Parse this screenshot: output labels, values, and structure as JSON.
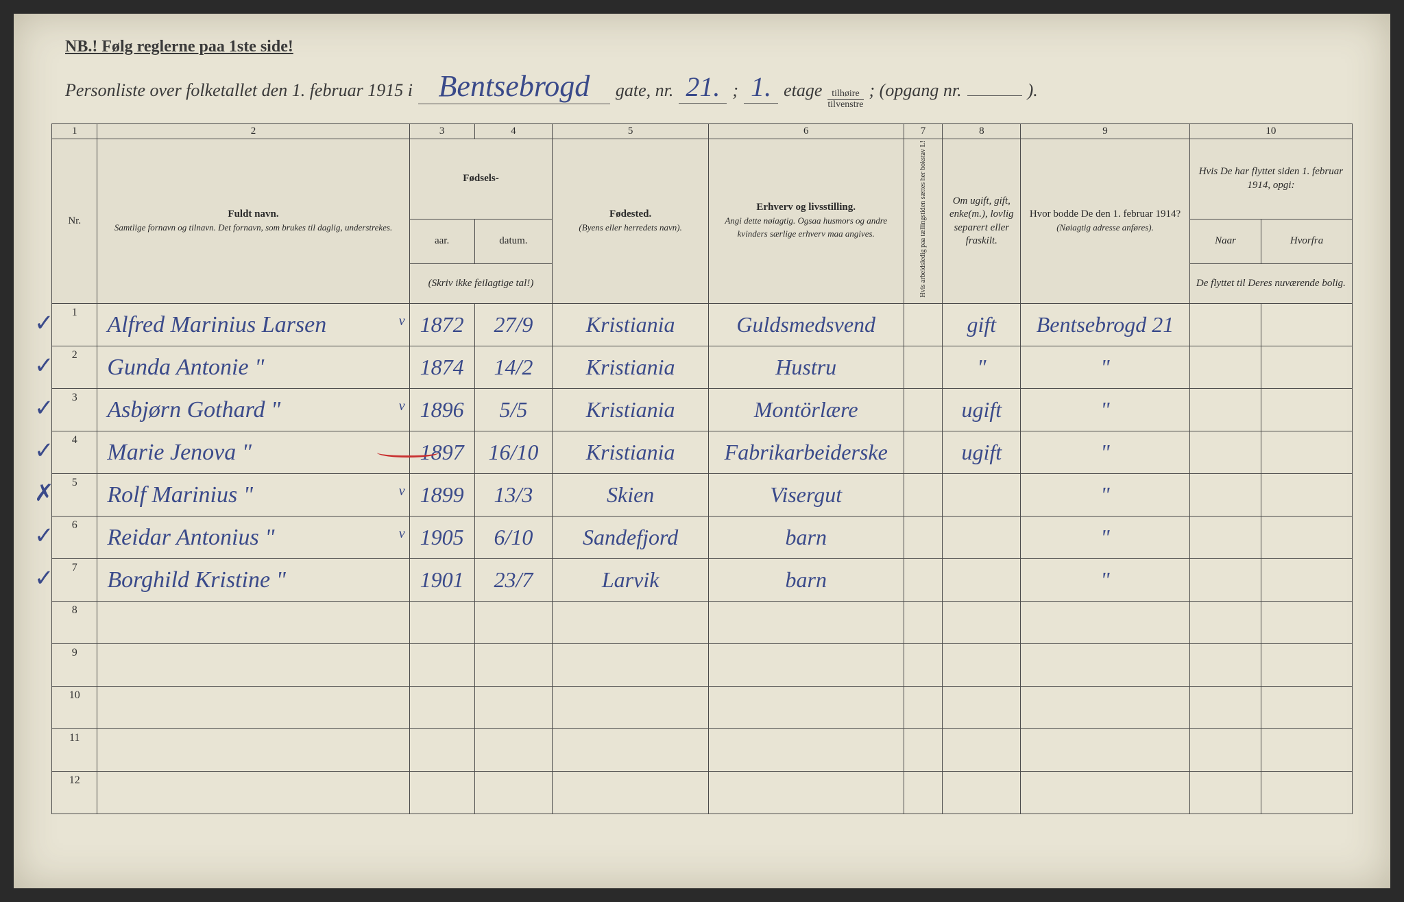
{
  "header": {
    "nb": "NB.! Følg reglerne paa 1ste side!",
    "title_prefix": "Personliste over folketallet den 1. februar 1915 i",
    "street": "Bentsebrogd",
    "gate_label": "gate, nr.",
    "gate_nr": "21.",
    "semicolon1": ";",
    "etage_nr": "1.",
    "etage_label": "etage",
    "frac_top": "tilhøire",
    "frac_bot": "tilvenstre",
    "opgang": "; (opgang nr.",
    "opgang_nr": "",
    "closing": ")."
  },
  "columns": {
    "nums": [
      "1",
      "2",
      "3",
      "4",
      "5",
      "6",
      "7",
      "8",
      "9",
      "10"
    ],
    "c1": "Nr.",
    "c2_main": "Fuldt navn.",
    "c2_sub": "Samtlige fornavn og tilnavn. Det fornavn, som brukes til daglig, understrekes.",
    "c34_top": "Fødsels-",
    "c3": "aar.",
    "c4": "datum.",
    "c34_sub": "(Skriv ikke feilagtige tal!)",
    "c5_main": "Fødested.",
    "c5_sub": "(Byens eller herredets navn).",
    "c6_main": "Erhverv og livsstilling.",
    "c6_sub": "Angi dette nøiagtig. Ogsaa husmors og andre kvinders særlige erhverv maa angives.",
    "c7": "Hvis arbeidsledig paa tællingstiden sættes her bokstav L!",
    "c8": "Om ugift, gift, enke(m.), lovlig separert eller fraskilt.",
    "c9_main": "Hvor bodde De den 1. februar 1914?",
    "c9_sub": "(Nøiagtig adresse anføres).",
    "c10_main": "Hvis De har flyttet siden 1. februar 1914, opgi:",
    "c10a": "Naar",
    "c10b": "Hvorfra",
    "c10_sub": "De flyttet til Deres nuværende bolig."
  },
  "rows": [
    {
      "n": "1",
      "check": "✓",
      "name": "Alfred Marinius Larsen",
      "v": "v",
      "aar": "1872",
      "dat": "27/9",
      "sted": "Kristiania",
      "erhv": "Guldsmedsvend",
      "col7": "",
      "status": "gift",
      "addr": "Bentsebrogd 21",
      "naar": "",
      "hvor": ""
    },
    {
      "n": "2",
      "check": "✓",
      "name": "Gunda Antonie    \"",
      "v": "",
      "aar": "1874",
      "dat": "14/2",
      "sted": "Kristiania",
      "erhv": "Hustru",
      "col7": "",
      "status": "\"",
      "addr": "\"",
      "naar": "",
      "hvor": ""
    },
    {
      "n": "3",
      "check": "✓",
      "name": "Asbjørn Gothard    \"",
      "v": "v",
      "aar": "1896",
      "dat": "5/5",
      "sted": "Kristiania",
      "erhv": "Montörlære",
      "col7": "",
      "status": "ugift",
      "addr": "\"",
      "naar": "",
      "hvor": ""
    },
    {
      "n": "4",
      "check": "✓",
      "name": "Marie Jenova    \"",
      "v": "",
      "aar": "1897",
      "dat": "16/10",
      "sted": "Kristiania",
      "erhv": "Fabrikarbeiderske",
      "col7": "",
      "status": "ugift",
      "addr": "\"",
      "naar": "",
      "hvor": ""
    },
    {
      "n": "5",
      "check": "✗",
      "name": "Rolf Marinius    \"",
      "v": "v",
      "aar": "1899",
      "dat": "13/3",
      "sted": "Skien",
      "erhv": "Visergut",
      "col7": "",
      "status": "",
      "addr": "\"",
      "naar": "",
      "hvor": ""
    },
    {
      "n": "6",
      "check": "✓",
      "name": "Reidar Antonius    \"",
      "v": "v",
      "aar": "1905",
      "dat": "6/10",
      "sted": "Sandefjord",
      "erhv": "barn",
      "col7": "",
      "status": "",
      "addr": "\"",
      "naar": "",
      "hvor": ""
    },
    {
      "n": "7",
      "check": "✓",
      "name": "Borghild Kristine    \"",
      "v": "",
      "aar": "1901",
      "dat": "23/7",
      "sted": "Larvik",
      "erhv": "barn",
      "col7": "",
      "status": "",
      "addr": "\"",
      "naar": "",
      "hvor": ""
    },
    {
      "n": "8",
      "check": "",
      "name": "",
      "v": "",
      "aar": "",
      "dat": "",
      "sted": "",
      "erhv": "",
      "col7": "",
      "status": "",
      "addr": "",
      "naar": "",
      "hvor": ""
    },
    {
      "n": "9",
      "check": "",
      "name": "",
      "v": "",
      "aar": "",
      "dat": "",
      "sted": "",
      "erhv": "",
      "col7": "",
      "status": "",
      "addr": "",
      "naar": "",
      "hvor": ""
    },
    {
      "n": "10",
      "check": "",
      "name": "",
      "v": "",
      "aar": "",
      "dat": "",
      "sted": "",
      "erhv": "",
      "col7": "",
      "status": "",
      "addr": "",
      "naar": "",
      "hvor": ""
    },
    {
      "n": "11",
      "check": "",
      "name": "",
      "v": "",
      "aar": "",
      "dat": "",
      "sted": "",
      "erhv": "",
      "col7": "",
      "status": "",
      "addr": "",
      "naar": "",
      "hvor": ""
    },
    {
      "n": "12",
      "check": "",
      "name": "",
      "v": "",
      "aar": "",
      "dat": "",
      "sted": "",
      "erhv": "",
      "col7": "",
      "status": "",
      "addr": "",
      "naar": "",
      "hvor": ""
    }
  ],
  "colors": {
    "paper": "#e8e4d4",
    "ink_print": "#3a3a3a",
    "ink_hand": "#3a4a8a",
    "border": "#4a4a4a",
    "red": "#c93030"
  }
}
